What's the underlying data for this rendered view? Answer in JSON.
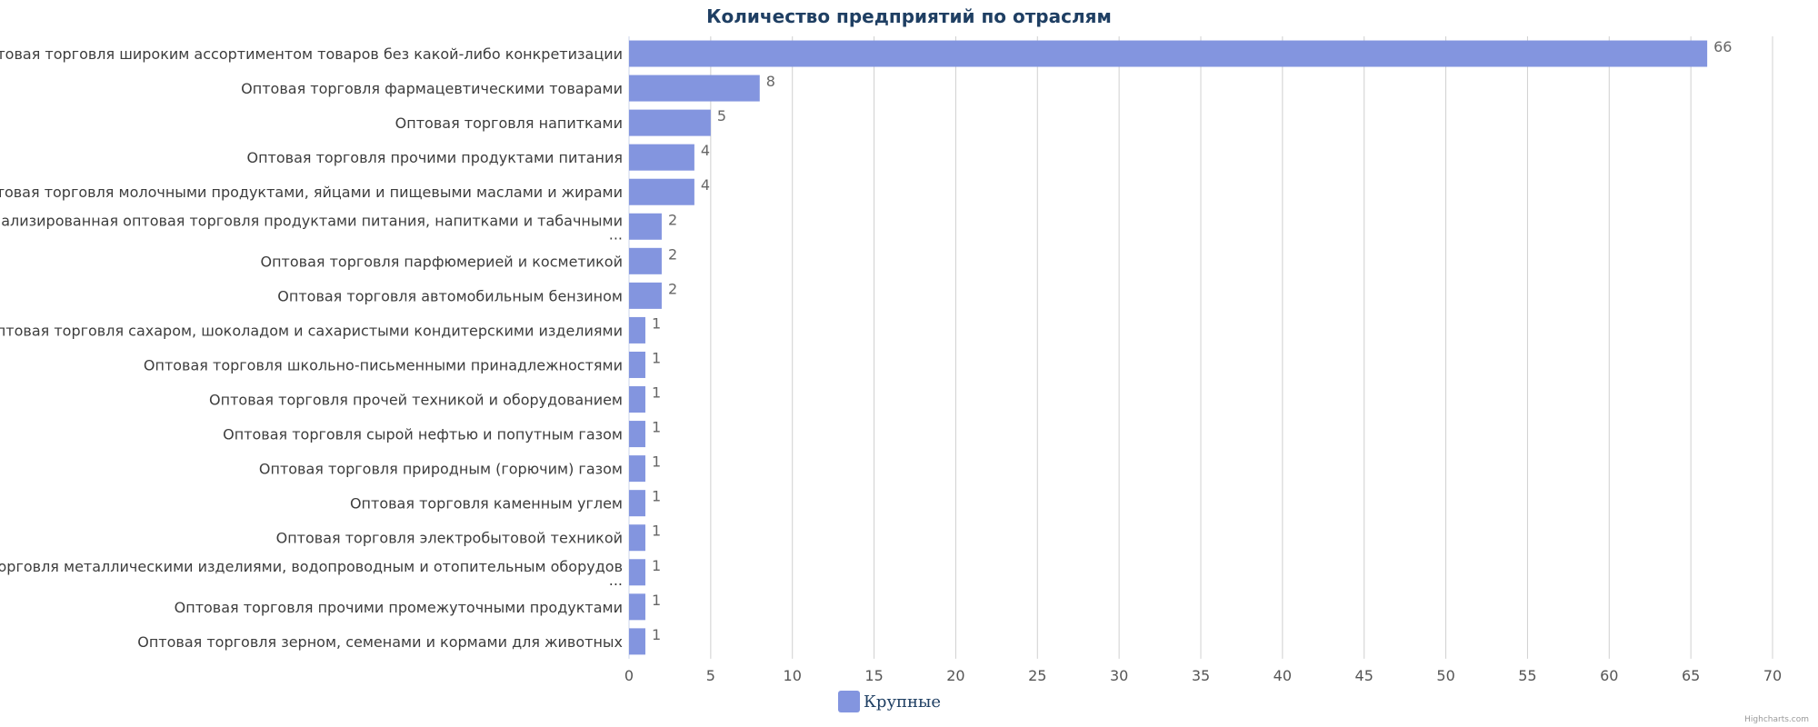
{
  "chart_data": {
    "type": "bar",
    "orientation": "horizontal",
    "title": "Количество предприятий по отраслям",
    "categories": [
      "Неспециализированная оптовая торговля широким ассортиментом товаров без какой-либо конкретизации",
      "Оптовая торговля фармацевтическими товарами",
      "Оптовая торговля напитками",
      "Оптовая торговля прочими продуктами питания",
      "Оптовая торговля молочными продуктами, яйцами и пищевыми маслами и жирами",
      "Неспециализированная оптовая торговля продуктами питания, напитками и табачными ...",
      "Оптовая торговля парфюмерией и косметикой",
      "Оптовая торговля автомобильным бензином",
      "Оптовая торговля сахаром, шоколадом и сахаристыми кондитерскими изделиями",
      "Оптовая торговля школьно-письменными принадлежностями",
      "Оптовая торговля прочей техникой и оборудованием",
      "Оптовая торговля сырой нефтью и попутным газом",
      "Оптовая торговля природным (горючим) газом",
      "Оптовая торговля каменным углем",
      "Оптовая торговля электробытовой техникой",
      "Оптовая торговля металлическими изделиями, водопроводным и отопительным оборудов ...",
      "Оптовая торговля прочими промежуточными продуктами",
      "Оптовая торговля зерном, семенами и кормами для животных"
    ],
    "series": [
      {
        "name": "Крупные",
        "color": "#8395df",
        "values": [
          66,
          8,
          5,
          4,
          4,
          2,
          2,
          2,
          1,
          1,
          1,
          1,
          1,
          1,
          1,
          1,
          1,
          1
        ]
      }
    ],
    "xlim": [
      0,
      70
    ],
    "x_ticks": [
      "0",
      "5",
      "10",
      "15",
      "20",
      "25",
      "30",
      "35",
      "40",
      "45",
      "50",
      "55",
      "60",
      "65",
      "70"
    ],
    "grid": true,
    "legend_position": "bottom-center",
    "credits": "Highcharts.com"
  }
}
